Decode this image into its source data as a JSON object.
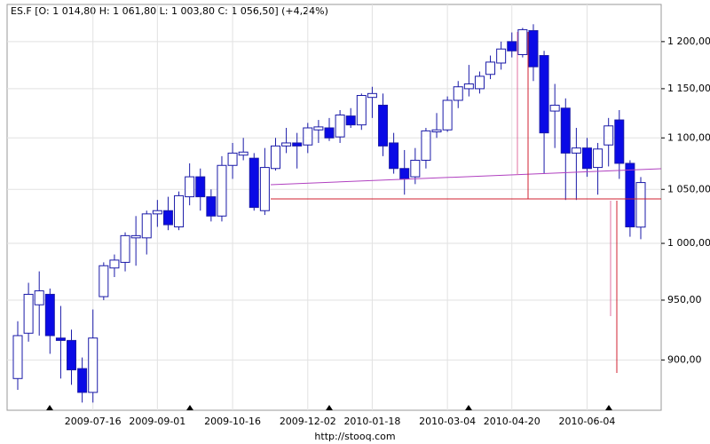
{
  "chart_data": {
    "type": "candlestick",
    "title": "ES.F [O: 1 014,80  H: 1 061,80  L: 1 003,80  C: 1 056,50] (+4,24%)",
    "source": "http://stooq.com",
    "log_scale": true,
    "grid": true,
    "up_color": "#ffffff",
    "down_color": "#0a0ae6",
    "edge_color": "#1a1aa8",
    "ylim": [
      860,
      1241
    ],
    "yticks": [
      {
        "value": 900,
        "label": "900,00"
      },
      {
        "value": 950,
        "label": "950,00"
      },
      {
        "value": 1000,
        "label": "1 000,00"
      },
      {
        "value": 1050,
        "label": "1 050,00"
      },
      {
        "value": 1100,
        "label": "1 100,00"
      },
      {
        "value": 1150,
        "label": "1 150,00"
      },
      {
        "value": 1200,
        "label": "1 200,00"
      }
    ],
    "categories": [
      null,
      null,
      null,
      null,
      null,
      null,
      null,
      "2009-07-16",
      null,
      null,
      null,
      null,
      null,
      "2009-09-01",
      null,
      null,
      null,
      null,
      null,
      null,
      "2009-10-16",
      null,
      null,
      null,
      null,
      null,
      null,
      "2009-12-02",
      null,
      null,
      null,
      null,
      null,
      "2010-01-18",
      null,
      null,
      null,
      null,
      null,
      null,
      "2010-03-04",
      null,
      null,
      null,
      null,
      null,
      "2010-04-20",
      null,
      null,
      null,
      null,
      null,
      null,
      "2010-06-04",
      null,
      null,
      null,
      null,
      null
    ],
    "open": [
      885,
      922,
      946,
      955,
      918,
      916,
      893,
      874,
      953,
      978,
      983,
      1005,
      1005,
      1027,
      1030,
      1015,
      1043,
      1062,
      1043,
      1025,
      1073,
      1083,
      1080,
      1030,
      1070,
      1092,
      1095,
      1093,
      1108,
      1110,
      1101,
      1122,
      1113,
      1141,
      1133,
      1095,
      1070,
      1062,
      1078,
      1106,
      1108,
      1138,
      1150,
      1150,
      1165,
      1177,
      1200,
      1186,
      1212,
      1185,
      1127,
      1130,
      1085,
      1090,
      1071,
      1093,
      1118,
      1075,
      1014.8
    ],
    "high": [
      932,
      965,
      975,
      960,
      945,
      925,
      902,
      942,
      983,
      990,
      1010,
      1025,
      1030,
      1040,
      1043,
      1048,
      1075,
      1070,
      1050,
      1082,
      1095,
      1100,
      1085,
      1090,
      1100,
      1110,
      1105,
      1115,
      1118,
      1120,
      1128,
      1130,
      1145,
      1152,
      1145,
      1105,
      1088,
      1090,
      1110,
      1125,
      1142,
      1158,
      1175,
      1168,
      1185,
      1200,
      1210,
      1215,
      1219,
      1190,
      1155,
      1140,
      1110,
      1100,
      1095,
      1120,
      1128,
      1078,
      1061.8
    ],
    "low": [
      876,
      915,
      920,
      905,
      885,
      880,
      866,
      866,
      950,
      970,
      975,
      980,
      990,
      1015,
      1012,
      1012,
      1035,
      1030,
      1020,
      1020,
      1060,
      1078,
      1030,
      1026,
      1068,
      1085,
      1070,
      1085,
      1095,
      1097,
      1095,
      1110,
      1108,
      1120,
      1082,
      1065,
      1045,
      1055,
      1070,
      1100,
      1106,
      1130,
      1142,
      1145,
      1160,
      1170,
      1183,
      1183,
      1158,
      1065,
      1090,
      1040,
      1040,
      1062,
      1045,
      1072,
      1060,
      1006,
      1003.8
    ],
    "close": [
      920,
      955,
      958,
      920,
      916,
      892,
      874,
      918,
      980,
      985,
      1007,
      1007,
      1027,
      1030,
      1017,
      1044,
      1062,
      1043,
      1025,
      1073,
      1085,
      1086,
      1033,
      1071,
      1092,
      1095,
      1092,
      1110,
      1111,
      1100,
      1123,
      1113,
      1143,
      1145,
      1092,
      1070,
      1060,
      1078,
      1107,
      1108,
      1138,
      1152,
      1155,
      1163,
      1178,
      1192,
      1190,
      1213,
      1173,
      1105,
      1133,
      1085,
      1090,
      1070,
      1089,
      1112,
      1075,
      1015,
      1056.5
    ]
  }
}
